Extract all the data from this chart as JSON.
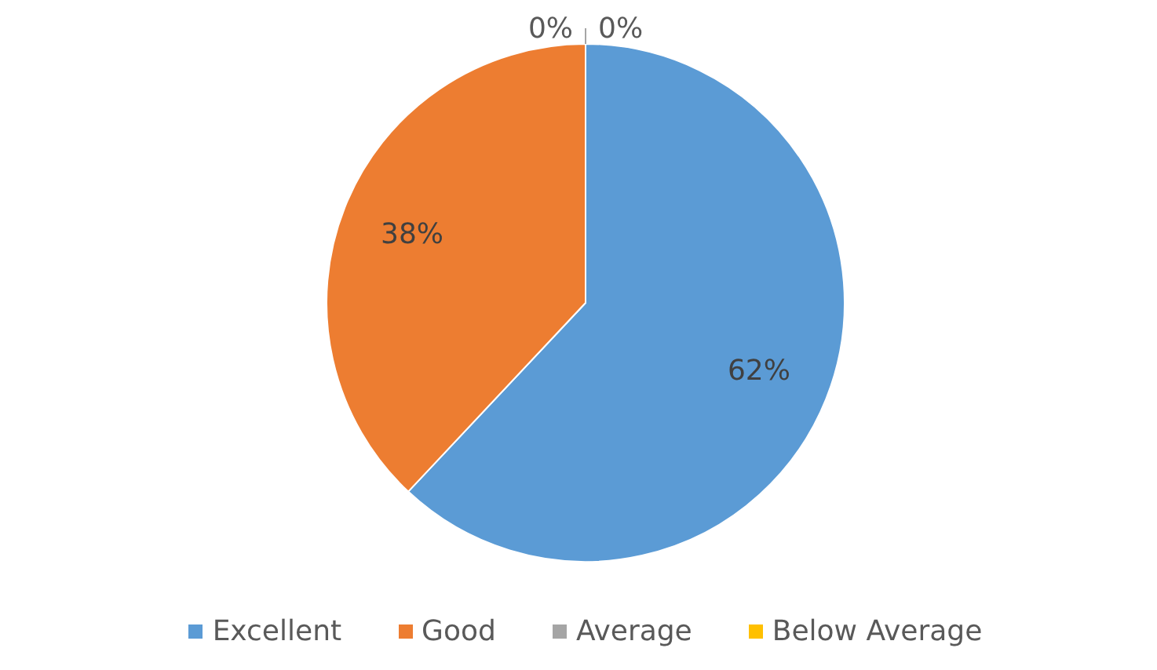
{
  "chart_data": {
    "type": "pie",
    "categories": [
      "Excellent",
      "Good",
      "Average",
      "Below Average"
    ],
    "values": [
      62,
      38,
      0,
      0
    ],
    "colors": [
      "#5b9bd5",
      "#ed7d31",
      "#a5a5a5",
      "#ffc000"
    ],
    "value_labels": [
      "62%",
      "38%",
      "0%",
      "0%"
    ],
    "legend": "bottom"
  }
}
